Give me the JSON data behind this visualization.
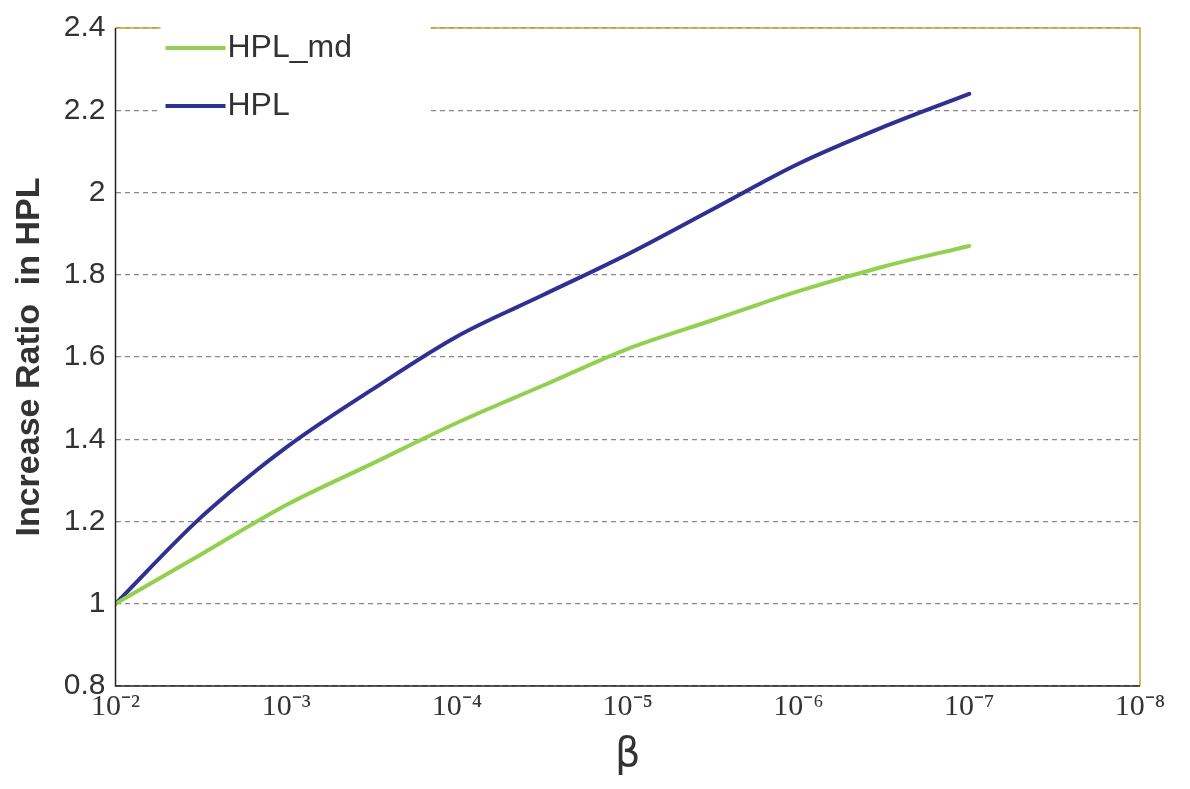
{
  "chart_data": {
    "type": "line",
    "xlabel": "β",
    "ylabel": "Increase Ratio  in HPL",
    "log": "x",
    "xlim": [
      0.01,
      1e-08
    ],
    "xticks": [
      {
        "value": 0.01,
        "label": "10⁻²"
      },
      {
        "value": 0.001,
        "label": "10⁻³"
      },
      {
        "value": 0.0001,
        "label": "10⁻⁴"
      },
      {
        "value": 1e-05,
        "label": "10⁻⁵"
      },
      {
        "value": 1e-06,
        "label": "10⁻⁶"
      },
      {
        "value": 1e-07,
        "label": "10⁻⁷"
      },
      {
        "value": 1e-08,
        "label": "10⁻⁸"
      }
    ],
    "ylim": [
      0.8,
      2.4
    ],
    "yticks": [
      0.8,
      1,
      1.2,
      1.4,
      1.6,
      1.8,
      2,
      2.2,
      2.4
    ],
    "x": [
      0.01,
      0.00316,
      0.001,
      0.000316,
      0.0001,
      3.16e-05,
      1e-05,
      3.16e-06,
      1e-06,
      3.16e-07,
      1e-07
    ],
    "series": [
      {
        "name": "HPL_md",
        "color": "#92d050",
        "values": [
          1.0,
          1.12,
          1.24,
          1.34,
          1.44,
          1.53,
          1.62,
          1.69,
          1.76,
          1.82,
          1.87
        ]
      },
      {
        "name": "HPL",
        "color": "#2e3192",
        "values": [
          1.0,
          1.21,
          1.38,
          1.52,
          1.65,
          1.75,
          1.85,
          1.96,
          2.07,
          2.16,
          2.24
        ]
      }
    ],
    "grid": "y",
    "legend": "top left",
    "marker": "none",
    "line_style": "solid"
  }
}
